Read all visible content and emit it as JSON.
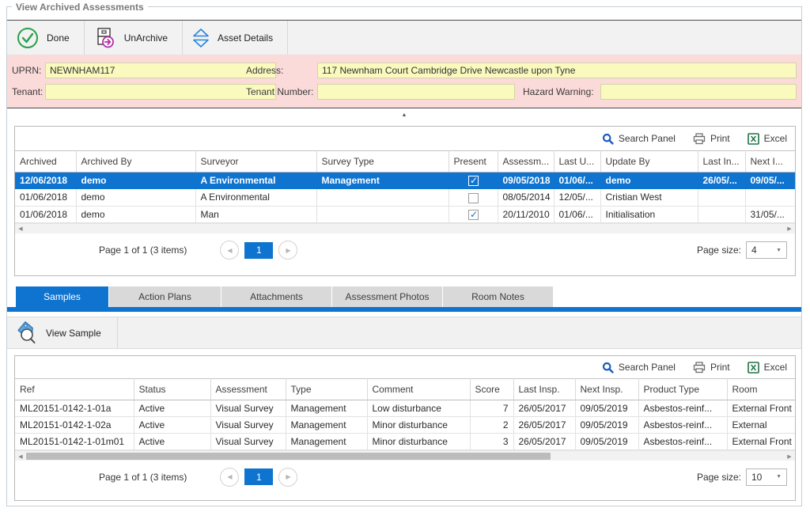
{
  "window": {
    "title": "View Archived Assessments"
  },
  "toolbar": {
    "done": "Done",
    "unarchive": "UnArchive",
    "asset_details": "Asset Details"
  },
  "form": {
    "uprn_label": "UPRN:",
    "uprn_value": "NEWNHAM117",
    "address_label": "Address:",
    "address_value": "117 Newnham Court Cambridge Drive Newcastle upon Tyne",
    "tenant_label": "Tenant:",
    "tenant_value": "",
    "tenant_number_label": "Tenant Number:",
    "tenant_number_value": "",
    "hazard_label": "Hazard Warning:",
    "hazard_value": ""
  },
  "grid_actions": {
    "search": "Search Panel",
    "print": "Print",
    "excel": "Excel"
  },
  "assessments_grid": {
    "columns": [
      "Archived",
      "Archived By",
      "Surveyor",
      "Survey Type",
      "Present",
      "Assessm...",
      "Last U...",
      "Update By",
      "Last In...",
      "Next I..."
    ],
    "rows": [
      [
        "12/06/2018",
        "demo",
        "A Environmental",
        "Management",
        true,
        "09/05/2018",
        "01/06/...",
        "demo",
        "26/05/...",
        "09/05/..."
      ],
      [
        "01/06/2018",
        "demo",
        "A Environmental",
        "",
        false,
        "08/05/2014",
        "12/05/...",
        "Cristian West",
        "",
        ""
      ],
      [
        "01/06/2018",
        "demo",
        "Man",
        "",
        true,
        "20/11/2010",
        "01/06/...",
        "Initialisation",
        "",
        "31/05/..."
      ]
    ],
    "selected_row": 0,
    "pager": {
      "summary": "Page 1 of 1 (3 items)",
      "page": "1",
      "page_size_label": "Page size:",
      "page_size": "4"
    }
  },
  "tabs": {
    "items": [
      {
        "label": "Samples"
      },
      {
        "label": "Action Plans"
      },
      {
        "label": "Attachments"
      },
      {
        "label": "Assessment Photos"
      },
      {
        "label": "Room Notes"
      }
    ]
  },
  "samples_toolbar": {
    "view_sample": "View Sample"
  },
  "samples_grid": {
    "columns": [
      "Ref",
      "Status",
      "Assessment",
      "Type",
      "Comment",
      "Score",
      "Last Insp.",
      "Next Insp.",
      "Product Type",
      "Room"
    ],
    "rows": [
      [
        "ML20151-0142-1-01a",
        "Active",
        "Visual Survey",
        "Management",
        "Low disturbance",
        "7",
        "26/05/2017",
        "09/05/2019",
        "Asbestos-reinf...",
        "External Front .."
      ],
      [
        "ML20151-0142-1-02a",
        "Active",
        "Visual Survey",
        "Management",
        "Minor disturbance",
        "2",
        "26/05/2017",
        "09/05/2019",
        "Asbestos-reinf...",
        "External"
      ],
      [
        "ML20151-0142-1-01m01",
        "Active",
        "Visual Survey",
        "Management",
        "Minor disturbance",
        "3",
        "26/05/2017",
        "09/05/2019",
        "Asbestos-reinf...",
        "External Front .."
      ]
    ],
    "selected_row": -1,
    "pager": {
      "summary": "Page 1 of 1 (3 items)",
      "page": "1",
      "page_size_label": "Page size:",
      "page_size": "10"
    }
  },
  "colors": {
    "accent": "#0f74cf",
    "form_bg": "#fadbd9",
    "input_bg": "#fafabe",
    "done_green": "#28a14b",
    "unarchive_magenta": "#b32ca8",
    "details_blue": "#2f83d6",
    "excel_green": "#217346"
  }
}
